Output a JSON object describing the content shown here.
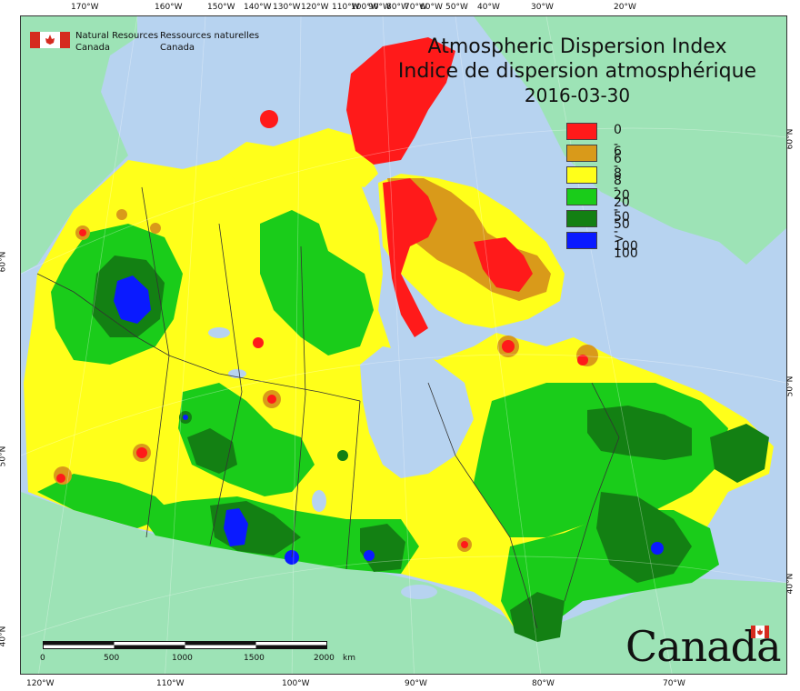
{
  "title": {
    "line1": "Atmospheric Dispersion Index",
    "line2": "Indice de dispersion atmosphérique",
    "date": "2016-03-30"
  },
  "agency": {
    "en_line1": "Natural Resources",
    "en_line2": "Canada",
    "fr_line1": "Ressources naturelles",
    "fr_line2": "Canada"
  },
  "wordmark": "Canada",
  "legend": [
    {
      "label": "0 - 6",
      "color": "#ff1a1a"
    },
    {
      "label": "6 - 8",
      "color": "#d99a1a"
    },
    {
      "label": "8 - 20",
      "color": "#ffff1a"
    },
    {
      "label": "20 - 50",
      "color": "#1acc1a"
    },
    {
      "label": "50 - 100",
      "color": "#138013"
    },
    {
      "label": "> 100",
      "color": "#0a1aff"
    }
  ],
  "colors": {
    "ocean": "#b7d3f0",
    "land_outside": "#9de3b6",
    "cat_0_6": "#ff1a1a",
    "cat_6_8": "#d99a1a",
    "cat_8_20": "#ffff1a",
    "cat_20_50": "#1acc1a",
    "cat_50_100": "#138013",
    "cat_100_plus": "#0a1aff"
  },
  "top_longitudes": [
    "170°W",
    "160°W",
    "150°W",
    "140°W",
    "130°W",
    "120°W",
    "110°W",
    "100°W",
    "90°W",
    "80°W",
    "70°W",
    "60°W",
    "50°W",
    "40°W",
    "30°W",
    "20°W"
  ],
  "bottom_longitudes": [
    "120°W",
    "110°W",
    "100°W",
    "90°W",
    "80°W",
    "70°W"
  ],
  "left_latitudes": [
    "60°N",
    "50°N",
    "40°N"
  ],
  "right_latitudes": [
    "60°N",
    "50°N",
    "40°N"
  ],
  "scale": {
    "ticks": [
      "0",
      "500",
      "1000",
      "1500",
      "2000"
    ],
    "unit": "km"
  }
}
